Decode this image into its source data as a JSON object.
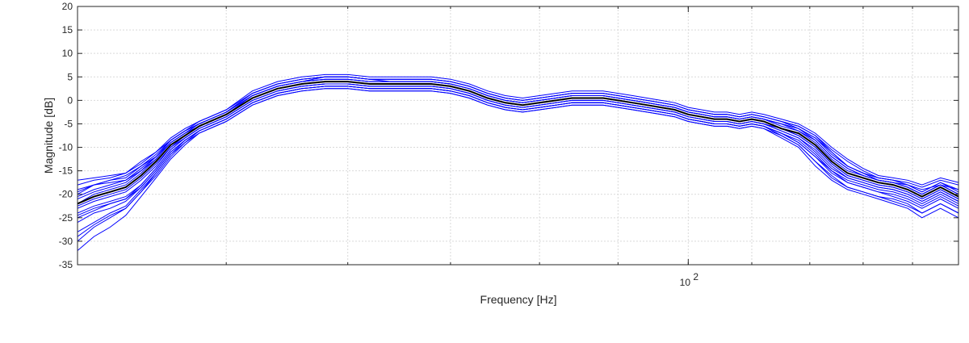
{
  "chart_data": {
    "type": "line",
    "title": "",
    "xlabel": "Frequency [Hz]",
    "ylabel": "Magnitude [dB]",
    "xscale": "log",
    "xlim": [
      40,
      150
    ],
    "ylim": [
      -35,
      20
    ],
    "grid": true,
    "y_ticks": [
      20,
      15,
      10,
      5,
      0,
      -5,
      -10,
      -15,
      -20,
      -25,
      -30,
      -35
    ],
    "y_tick_labels": [
      "20",
      "15",
      "10",
      "5",
      "0",
      "-5",
      "-10",
      "-15",
      "-20",
      "-25",
      "-30",
      "-35"
    ],
    "x_ticks": [
      100
    ],
    "x_tick_labels": [
      {
        "base": "10",
        "exp": "2"
      }
    ],
    "x_minor_ticks": [
      50,
      60,
      70,
      80,
      90
    ],
    "colors": {
      "individual": "#0000ff",
      "mean": "#000000",
      "grid": "#d9d9d9",
      "axes": "#262626"
    },
    "mean_series": {
      "x": [
        40,
        41,
        42,
        43,
        44,
        45,
        46,
        47,
        48,
        50,
        52,
        54,
        56,
        58,
        60,
        62,
        64,
        66,
        68,
        70,
        72,
        74,
        76,
        78,
        80,
        82,
        84,
        86,
        88,
        90,
        92,
        94,
        96,
        98,
        100,
        102,
        104,
        106,
        108,
        110,
        112,
        115,
        118,
        121,
        124,
        127,
        130,
        133,
        136,
        139,
        142,
        146,
        150
      ],
      "y": [
        -22,
        -20.5,
        -19.5,
        -18.5,
        -16,
        -13,
        -9.5,
        -7.5,
        -5.5,
        -3,
        0.5,
        2.5,
        3.5,
        4,
        4,
        3.5,
        3.5,
        3.5,
        3.5,
        3,
        2,
        0.5,
        -0.5,
        -1,
        -0.5,
        0,
        0.5,
        0.5,
        0.5,
        0,
        -0.5,
        -1,
        -1.5,
        -2,
        -3,
        -3.5,
        -4,
        -4,
        -4.5,
        -4,
        -4.5,
        -6,
        -7,
        -9.5,
        -13,
        -15.5,
        -16.5,
        -17.5,
        -18,
        -19,
        -20.5,
        -18.5,
        -20.5
      ]
    },
    "individual_series": [
      {
        "y": [
          -20,
          -18,
          -17,
          -16,
          -14,
          -12,
          -9,
          -7,
          -5.5,
          -3,
          1,
          3,
          4,
          5,
          5,
          4.5,
          4,
          4,
          4,
          3.5,
          2.5,
          1,
          0,
          -0.5,
          0,
          0.5,
          1,
          1,
          1,
          0.5,
          0,
          -0.5,
          -1,
          -1.5,
          -2.5,
          -3,
          -3.5,
          -3.5,
          -4,
          -3.5,
          -4,
          -5,
          -6,
          -8,
          -11,
          -14,
          -15.5,
          -17,
          -17.5,
          -18,
          -19,
          -18,
          -19
        ]
      },
      {
        "y": [
          -24,
          -22.5,
          -21.5,
          -20.5,
          -18,
          -14.5,
          -10.5,
          -8,
          -6,
          -3.5,
          0,
          2,
          3,
          3.5,
          3.5,
          3,
          3,
          3,
          3,
          2.5,
          1.5,
          0,
          -1,
          -1.5,
          -1,
          -0.5,
          0,
          0,
          0,
          -0.5,
          -1,
          -1.5,
          -2,
          -2.5,
          -3.5,
          -4,
          -4.5,
          -4.5,
          -5,
          -4.5,
          -5,
          -6.5,
          -8,
          -10.5,
          -14,
          -16.5,
          -17.5,
          -18.5,
          -19,
          -20,
          -21.5,
          -19.5,
          -21.5
        ]
      },
      {
        "y": [
          -18,
          -17,
          -16.5,
          -15.5,
          -13,
          -11,
          -8.5,
          -6.5,
          -5,
          -2.5,
          1.5,
          3.5,
          4.5,
          5,
          5,
          4.5,
          4.5,
          4.5,
          4.5,
          4,
          3,
          1.5,
          0.5,
          0,
          0.5,
          1,
          1.5,
          1.5,
          1.5,
          1,
          0.5,
          0,
          -0.5,
          -1,
          -2,
          -2.5,
          -3,
          -3,
          -3.5,
          -3,
          -3.5,
          -4.5,
          -5.5,
          -7.5,
          -10.5,
          -13,
          -15,
          -16.5,
          -17,
          -17.5,
          -18.5,
          -17,
          -18
        ]
      },
      {
        "y": [
          -28,
          -26,
          -24,
          -22.5,
          -19,
          -15.5,
          -11.5,
          -8.5,
          -6.5,
          -4,
          -0.5,
          1.5,
          2.5,
          3,
          3,
          2.5,
          2.5,
          2.5,
          2.5,
          2,
          1,
          -0.5,
          -1.5,
          -2,
          -1.5,
          -1,
          -0.5,
          -0.5,
          -0.5,
          -1,
          -1.5,
          -2,
          -2.5,
          -3,
          -4,
          -4.5,
          -5,
          -5,
          -5.5,
          -5,
          -5.5,
          -7,
          -9,
          -12,
          -15,
          -17.5,
          -18.5,
          -19.5,
          -20.5,
          -21.5,
          -23,
          -21,
          -23
        ]
      },
      {
        "y": [
          -22,
          -20,
          -19,
          -18,
          -15.5,
          -12.5,
          -9,
          -7,
          -5,
          -2.5,
          1,
          3,
          4,
          4.5,
          4.5,
          4,
          4,
          4,
          4,
          3.5,
          2.5,
          1,
          0,
          -0.5,
          0,
          0.5,
          1,
          1,
          1,
          0.5,
          0,
          -0.5,
          -1,
          -1.5,
          -2.5,
          -3,
          -3.5,
          -3.5,
          -4,
          -3.5,
          -4,
          -5.5,
          -6.5,
          -9,
          -12.5,
          -15,
          -16,
          -17,
          -17.5,
          -18.5,
          -20,
          -18,
          -20
        ]
      },
      {
        "y": [
          -30,
          -27,
          -25,
          -23,
          -19.5,
          -16,
          -12,
          -9,
          -7,
          -4.5,
          -1,
          1,
          2,
          2.5,
          2.5,
          2,
          2,
          2,
          2,
          1.5,
          0.5,
          -1,
          -2,
          -2.5,
          -2,
          -1.5,
          -1,
          -1,
          -1,
          -1.5,
          -2,
          -2.5,
          -3,
          -3.5,
          -4.5,
          -5,
          -5.5,
          -5.5,
          -6,
          -5.5,
          -6,
          -7.5,
          -9.5,
          -13,
          -16,
          -18.5,
          -19.5,
          -20.5,
          -21.5,
          -22.5,
          -24,
          -22,
          -24
        ]
      },
      {
        "y": [
          -19,
          -18,
          -17.5,
          -17,
          -14.5,
          -12,
          -8.5,
          -6.5,
          -4.5,
          -2,
          1.5,
          3.5,
          4.5,
          5,
          5,
          4.5,
          4.5,
          4.5,
          4.5,
          4,
          3,
          1.5,
          0.5,
          0,
          0.5,
          1,
          1.5,
          1.5,
          1.5,
          1,
          0.5,
          0,
          -0.5,
          -1,
          -2,
          -2.5,
          -3,
          -3,
          -3.5,
          -3,
          -3.5,
          -4.5,
          -5.5,
          -7.5,
          -11,
          -14,
          -15.5,
          -16.5,
          -17,
          -18,
          -19.5,
          -17.5,
          -19.5
        ]
      },
      {
        "y": [
          -25,
          -23.5,
          -22,
          -21,
          -18.5,
          -15,
          -11,
          -8.5,
          -6.5,
          -4,
          -0.5,
          1.5,
          2.5,
          3,
          3,
          2.5,
          2.5,
          2.5,
          2.5,
          2,
          1,
          -0.5,
          -1.5,
          -2,
          -1.5,
          -1,
          -0.5,
          -0.5,
          -0.5,
          -1,
          -1.5,
          -2,
          -2.5,
          -3,
          -4,
          -4.5,
          -5,
          -5,
          -5.5,
          -5,
          -5.5,
          -7,
          -8.5,
          -11.5,
          -15,
          -17,
          -18,
          -19,
          -19.5,
          -20.5,
          -22,
          -20,
          -22
        ]
      },
      {
        "y": [
          -21,
          -19.5,
          -18.5,
          -17.5,
          -15,
          -12,
          -8.5,
          -6.5,
          -5,
          -2.5,
          1,
          3,
          4,
          4.5,
          4.5,
          4,
          4,
          4,
          4,
          3.5,
          2.5,
          1,
          0,
          -0.5,
          0,
          0.5,
          1,
          1,
          1,
          0.5,
          0,
          -0.5,
          -1,
          -1.5,
          -2.5,
          -3,
          -3.5,
          -3.5,
          -4,
          -3.5,
          -4,
          -5,
          -6.5,
          -8.5,
          -12,
          -14.5,
          -16,
          -17,
          -17.5,
          -18.5,
          -20,
          -18,
          -20
        ]
      },
      {
        "y": [
          -32,
          -29,
          -27,
          -24.5,
          -20.5,
          -16.5,
          -12.5,
          -9.5,
          -7,
          -4.5,
          -1,
          1,
          2,
          2.5,
          2.5,
          2,
          2,
          2,
          2,
          1.5,
          0.5,
          -1,
          -2,
          -2.5,
          -2,
          -1.5,
          -1,
          -1,
          -1,
          -1.5,
          -2,
          -2.5,
          -3,
          -3.5,
          -4.5,
          -5,
          -5.5,
          -5.5,
          -6,
          -5.5,
          -6,
          -8,
          -10,
          -14,
          -17,
          -19,
          -20,
          -21,
          -22,
          -23,
          -25,
          -23,
          -25
        ]
      },
      {
        "y": [
          -17,
          -16.5,
          -16,
          -15.5,
          -13.5,
          -11,
          -8,
          -6,
          -4.5,
          -2,
          2,
          4,
          5,
          5.5,
          5.5,
          5,
          5,
          5,
          5,
          4.5,
          3.5,
          2,
          1,
          0.5,
          1,
          1.5,
          2,
          2,
          2,
          1.5,
          1,
          0.5,
          0,
          -0.5,
          -1.5,
          -2,
          -2.5,
          -2.5,
          -3,
          -2.5,
          -3,
          -4,
          -5,
          -7,
          -10,
          -12.5,
          -14.5,
          -16,
          -16.5,
          -17,
          -18,
          -16.5,
          -17.5
        ]
      },
      {
        "y": [
          -23,
          -21.5,
          -20.5,
          -19.5,
          -17,
          -14,
          -10,
          -8,
          -6,
          -3.5,
          0,
          2,
          3,
          3.5,
          3.5,
          3,
          3,
          3,
          3,
          2.5,
          1.5,
          0,
          -1,
          -1.5,
          -1,
          -0.5,
          0,
          0,
          0,
          -0.5,
          -1,
          -1.5,
          -2,
          -2.5,
          -3.5,
          -4,
          -4.5,
          -4.5,
          -5,
          -4.5,
          -5,
          -6,
          -7.5,
          -10,
          -13.5,
          -16,
          -17,
          -18,
          -18.5,
          -19.5,
          -21,
          -19,
          -21
        ]
      },
      {
        "y": [
          -26,
          -24,
          -23,
          -21.5,
          -18.5,
          -15,
          -11,
          -8.5,
          -6.5,
          -4,
          -0.5,
          1.5,
          2.5,
          3,
          3,
          2.5,
          2.5,
          2.5,
          2.5,
          2,
          1,
          -0.5,
          -1.5,
          -2,
          -1.5,
          -1,
          -0.5,
          -0.5,
          -0.5,
          -1,
          -1.5,
          -2,
          -2.5,
          -3,
          -4,
          -4.5,
          -5,
          -5,
          -5.5,
          -5,
          -5.5,
          -7,
          -9,
          -12,
          -15.5,
          -17.5,
          -18.5,
          -19.5,
          -20,
          -21,
          -22.5,
          -20.5,
          -22.5
        ]
      },
      {
        "y": [
          -19.5,
          -18,
          -17,
          -16.5,
          -14,
          -11.5,
          -8.5,
          -6.5,
          -5,
          -2.5,
          1.5,
          3.5,
          4.5,
          5,
          5,
          4.5,
          4.5,
          4.5,
          4.5,
          4,
          3,
          1.5,
          0.5,
          0,
          0.5,
          1,
          1.5,
          1.5,
          1.5,
          1,
          0.5,
          0,
          -0.5,
          -1,
          -2,
          -2.5,
          -3,
          -3,
          -3.5,
          -3,
          -3.5,
          -4.5,
          -6,
          -8,
          -11.5,
          -14,
          -15.5,
          -16.5,
          -17,
          -18,
          -19.5,
          -17.5,
          -19
        ]
      },
      {
        "y": [
          -29,
          -26.5,
          -24.5,
          -23,
          -19.5,
          -15.5,
          -11.5,
          -9,
          -6.5,
          -4,
          -0.5,
          1.5,
          2.5,
          3,
          3,
          2.5,
          2.5,
          2.5,
          2.5,
          2,
          1,
          -0.5,
          -1.5,
          -2,
          -1.5,
          -1,
          -0.5,
          -0.5,
          -0.5,
          -1,
          -1.5,
          -2,
          -2.5,
          -3,
          -4,
          -4.5,
          -5,
          -5,
          -5.5,
          -5,
          -5.5,
          -7.5,
          -9.5,
          -13,
          -16.5,
          -18.5,
          -19.5,
          -20.5,
          -21,
          -22,
          -24,
          -22,
          -24
        ]
      },
      {
        "y": [
          -22.5,
          -21,
          -20,
          -19,
          -16.5,
          -13.5,
          -10,
          -7.5,
          -5.5,
          -3,
          0.5,
          2.5,
          3.5,
          4,
          4,
          3.5,
          3.5,
          3.5,
          3.5,
          3,
          2,
          0.5,
          -0.5,
          -1,
          -0.5,
          0,
          0.5,
          0.5,
          0.5,
          0,
          -0.5,
          -1,
          -1.5,
          -2,
          -3,
          -3.5,
          -4,
          -4,
          -4.5,
          -4,
          -4.5,
          -6,
          -7.5,
          -10,
          -13.5,
          -16,
          -17,
          -18,
          -18.5,
          -19.5,
          -21,
          -19,
          -21
        ]
      },
      {
        "y": [
          -20.5,
          -19,
          -18,
          -17,
          -15,
          -12.5,
          -9,
          -7,
          -5,
          -2.5,
          1,
          3,
          4,
          4.5,
          4.5,
          4,
          4,
          4,
          4,
          3.5,
          2.5,
          1,
          0,
          -0.5,
          0,
          0.5,
          1,
          1,
          1,
          0.5,
          0,
          -0.5,
          -1,
          -1.5,
          -2.5,
          -3,
          -3.5,
          -3.5,
          -4,
          -3.5,
          -4,
          -5,
          -6,
          -8.5,
          -12,
          -14.5,
          -16,
          -17,
          -17.5,
          -18.5,
          -20,
          -18,
          -20
        ]
      },
      {
        "y": [
          -24.5,
          -23,
          -22,
          -21,
          -18,
          -14.5,
          -10.5,
          -8,
          -6,
          -3.5,
          0,
          2,
          3,
          3.5,
          3.5,
          3,
          3,
          3,
          3,
          2.5,
          1.5,
          0,
          -1,
          -1.5,
          -1,
          -0.5,
          0,
          0,
          0,
          -0.5,
          -1,
          -1.5,
          -2,
          -2.5,
          -3.5,
          -4,
          -4.5,
          -4.5,
          -5,
          -4.5,
          -5,
          -6.5,
          -8,
          -11,
          -14.5,
          -16.5,
          -17.5,
          -18.5,
          -19,
          -20,
          -21.5,
          -19.5,
          -21.5
        ]
      }
    ]
  }
}
